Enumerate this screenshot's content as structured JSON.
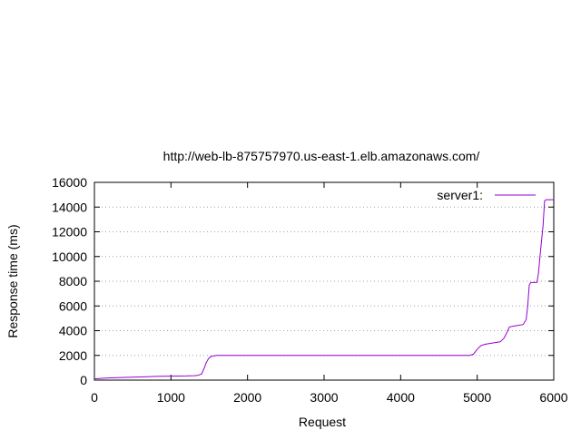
{
  "chart_data": {
    "type": "line",
    "title": "http://web-lb-875757970.us-east-1.elb.amazonaws.com/",
    "xlabel": "Request",
    "ylabel": "Response time (ms)",
    "xlim": [
      0,
      6000
    ],
    "ylim": [
      0,
      16000
    ],
    "xticks": [
      0,
      1000,
      2000,
      3000,
      4000,
      5000,
      6000
    ],
    "yticks": [
      0,
      2000,
      4000,
      6000,
      8000,
      10000,
      12000,
      14000,
      16000
    ],
    "grid": "horizontal dotted",
    "legend_position": "top-right",
    "series": [
      {
        "name": "server1:",
        "color": "#9400d3",
        "x": [
          0,
          100,
          200,
          300,
          400,
          500,
          600,
          700,
          800,
          900,
          1000,
          1100,
          1200,
          1300,
          1350,
          1400,
          1430,
          1460,
          1490,
          1520,
          1560,
          1600,
          1700,
          2000,
          3000,
          4000,
          4900,
          4950,
          5000,
          5050,
          5100,
          5200,
          5300,
          5350,
          5400,
          5420,
          5500,
          5600,
          5640,
          5660,
          5680,
          5700,
          5780,
          5800,
          5820,
          5860,
          5880,
          5900,
          6000
        ],
        "y": [
          100,
          150,
          180,
          200,
          220,
          240,
          260,
          280,
          300,
          310,
          320,
          330,
          340,
          360,
          380,
          500,
          900,
          1400,
          1750,
          1900,
          1970,
          2000,
          2000,
          2000,
          2000,
          2000,
          2000,
          2100,
          2500,
          2800,
          2900,
          3000,
          3100,
          3400,
          4000,
          4300,
          4400,
          4500,
          4900,
          6000,
          7700,
          7900,
          7900,
          8600,
          10000,
          12500,
          14500,
          14600,
          14600
        ]
      }
    ]
  }
}
